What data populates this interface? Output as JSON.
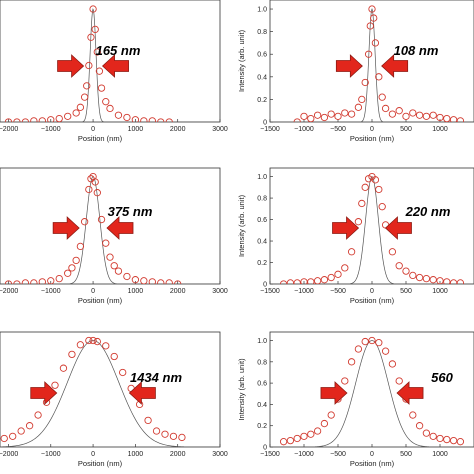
{
  "chart_data": [
    {
      "type": "scatter",
      "panel": "top-left",
      "xlabel": "Position (nm)",
      "ylabel": "",
      "xlim": [
        -2200,
        3000
      ],
      "ylim": [
        0,
        1.08
      ],
      "xticks": [
        -2000,
        -1000,
        0,
        1000,
        2000,
        3000
      ],
      "yticks": [],
      "fwhm_label": "165 nm",
      "fwhm_nm": 165,
      "series": [
        {
          "kind": "measured-points",
          "x": [
            -2000,
            -1800,
            -1600,
            -1400,
            -1200,
            -1000,
            -800,
            -600,
            -400,
            -300,
            -200,
            -150,
            -100,
            -50,
            0,
            50,
            100,
            150,
            200,
            300,
            400,
            600,
            800,
            1000,
            1200,
            1400,
            1600,
            1800
          ],
          "y": [
            0.0,
            0.0,
            0.0,
            0.01,
            0.01,
            0.02,
            0.03,
            0.05,
            0.08,
            0.13,
            0.22,
            0.32,
            0.5,
            0.75,
            1.0,
            0.82,
            0.62,
            0.45,
            0.3,
            0.18,
            0.12,
            0.06,
            0.04,
            0.02,
            0.01,
            0.01,
            0.0,
            0.0
          ]
        },
        {
          "kind": "fit-curve",
          "center": 0,
          "fwhm": 165
        }
      ]
    },
    {
      "type": "scatter",
      "panel": "top-right",
      "xlabel": "Position (nm)",
      "ylabel": "Intensity (arb. unit)",
      "xlim": [
        -1500,
        1500
      ],
      "ylim": [
        0,
        1.08
      ],
      "xticks": [
        -1500,
        -1000,
        -500,
        0,
        500,
        1000
      ],
      "yticks": [
        0,
        0.2,
        0.4,
        0.6,
        0.8,
        1.0
      ],
      "fwhm_label": "108 nm",
      "fwhm_nm": 108,
      "series": [
        {
          "kind": "measured-points",
          "x": [
            -1100,
            -1000,
            -900,
            -800,
            -700,
            -600,
            -500,
            -400,
            -300,
            -200,
            -150,
            -100,
            -50,
            -25,
            0,
            25,
            50,
            100,
            150,
            200,
            300,
            400,
            500,
            600,
            700,
            800,
            900,
            1000,
            1100,
            1200,
            1300
          ],
          "y": [
            0.0,
            0.05,
            0.03,
            0.06,
            0.04,
            0.07,
            0.05,
            0.08,
            0.07,
            0.13,
            0.2,
            0.35,
            0.6,
            0.85,
            1.0,
            0.92,
            0.7,
            0.4,
            0.22,
            0.12,
            0.07,
            0.1,
            0.05,
            0.08,
            0.06,
            0.05,
            0.06,
            0.04,
            0.03,
            0.02,
            0.01
          ]
        },
        {
          "kind": "fit-curve",
          "center": 0,
          "fwhm": 108
        }
      ]
    },
    {
      "type": "scatter",
      "panel": "middle-left",
      "xlabel": "Position (nm)",
      "ylabel": "",
      "xlim": [
        -2200,
        3000
      ],
      "ylim": [
        0,
        1.08
      ],
      "xticks": [
        -2000,
        -1000,
        0,
        1000,
        2000,
        3000
      ],
      "yticks": [],
      "fwhm_label": "375 nm",
      "fwhm_nm": 375,
      "series": [
        {
          "kind": "measured-points",
          "x": [
            -2000,
            -1800,
            -1600,
            -1400,
            -1200,
            -1000,
            -800,
            -600,
            -500,
            -400,
            -300,
            -200,
            -100,
            -50,
            0,
            50,
            100,
            200,
            300,
            400,
            500,
            600,
            800,
            1000,
            1200,
            1400,
            1600,
            1800,
            2000
          ],
          "y": [
            0.0,
            0.0,
            0.01,
            0.01,
            0.02,
            0.03,
            0.05,
            0.1,
            0.15,
            0.22,
            0.35,
            0.58,
            0.88,
            0.98,
            1.0,
            0.95,
            0.85,
            0.6,
            0.38,
            0.25,
            0.17,
            0.12,
            0.07,
            0.04,
            0.03,
            0.02,
            0.01,
            0.01,
            0.0
          ]
        },
        {
          "kind": "fit-curve",
          "center": 0,
          "fwhm": 375
        }
      ]
    },
    {
      "type": "scatter",
      "panel": "middle-right",
      "xlabel": "Position (nm)",
      "ylabel": "Intensity (arb. unit)",
      "xlim": [
        -1500,
        1500
      ],
      "ylim": [
        0,
        1.08
      ],
      "xticks": [
        -1500,
        -1000,
        -500,
        0,
        500,
        1000
      ],
      "yticks": [
        0,
        0.2,
        0.4,
        0.6,
        0.8,
        1.0
      ],
      "fwhm_label": "220 nm",
      "fwhm_nm": 220,
      "series": [
        {
          "kind": "measured-points",
          "x": [
            -1300,
            -1200,
            -1100,
            -1000,
            -900,
            -800,
            -700,
            -600,
            -500,
            -400,
            -300,
            -200,
            -150,
            -100,
            -50,
            0,
            50,
            100,
            150,
            200,
            300,
            400,
            500,
            600,
            700,
            800,
            900,
            1000,
            1100,
            1200,
            1300
          ],
          "y": [
            0.0,
            0.01,
            0.01,
            0.02,
            0.02,
            0.03,
            0.04,
            0.06,
            0.09,
            0.15,
            0.3,
            0.58,
            0.75,
            0.9,
            0.98,
            1.0,
            0.97,
            0.88,
            0.72,
            0.55,
            0.3,
            0.17,
            0.12,
            0.08,
            0.06,
            0.05,
            0.04,
            0.03,
            0.02,
            0.01,
            0.01
          ]
        },
        {
          "kind": "fit-curve",
          "center": 0,
          "fwhm": 220
        }
      ]
    },
    {
      "type": "scatter",
      "panel": "bottom-left",
      "xlabel": "Position (nm)",
      "ylabel": "",
      "xlim": [
        -2200,
        3000
      ],
      "ylim": [
        0,
        1.08
      ],
      "xticks": [
        -2000,
        -1000,
        0,
        1000,
        2000,
        3000
      ],
      "yticks": [],
      "fwhm_label": "1434 nm",
      "fwhm_nm": 1434,
      "series": [
        {
          "kind": "measured-points",
          "x": [
            -2100,
            -1900,
            -1700,
            -1500,
            -1300,
            -1100,
            -900,
            -700,
            -500,
            -300,
            -100,
            0,
            100,
            300,
            500,
            700,
            900,
            1100,
            1300,
            1500,
            1700,
            1900,
            2100
          ],
          "y": [
            0.08,
            0.1,
            0.15,
            0.2,
            0.3,
            0.42,
            0.58,
            0.74,
            0.87,
            0.96,
            1.0,
            1.0,
            0.99,
            0.95,
            0.85,
            0.7,
            0.55,
            0.4,
            0.25,
            0.15,
            0.12,
            0.1,
            0.09
          ]
        },
        {
          "kind": "fit-curve",
          "center": 0,
          "fwhm": 1434
        }
      ]
    },
    {
      "type": "scatter",
      "panel": "bottom-right",
      "xlabel": "Position (nm)",
      "ylabel": "Intensity (arb. unit)",
      "xlim": [
        -1500,
        1500
      ],
      "ylim": [
        0,
        1.08
      ],
      "xticks": [
        -1500,
        -1000,
        -500,
        0,
        500,
        1000
      ],
      "yticks": [
        0,
        0.2,
        0.4,
        0.6,
        0.8,
        1.0
      ],
      "fwhm_label": "560",
      "fwhm_nm": 560,
      "series": [
        {
          "kind": "measured-points",
          "x": [
            -1300,
            -1200,
            -1100,
            -1000,
            -900,
            -800,
            -700,
            -600,
            -500,
            -400,
            -300,
            -200,
            -100,
            0,
            100,
            200,
            300,
            400,
            500,
            600,
            700,
            800,
            900,
            1000,
            1100,
            1200,
            1300
          ],
          "y": [
            0.05,
            0.06,
            0.08,
            0.1,
            0.12,
            0.15,
            0.22,
            0.3,
            0.45,
            0.62,
            0.8,
            0.92,
            0.99,
            1.0,
            0.98,
            0.9,
            0.78,
            0.62,
            0.45,
            0.3,
            0.2,
            0.13,
            0.1,
            0.08,
            0.07,
            0.06,
            0.05
          ]
        },
        {
          "kind": "fit-curve",
          "center": 0,
          "fwhm": 560
        }
      ]
    }
  ],
  "colors": {
    "marker": "#d23b30",
    "fit_line": "#555555",
    "arrow_fill": "#e2261c",
    "arrow_stroke": "#8c1a12",
    "axis": "#333333"
  }
}
